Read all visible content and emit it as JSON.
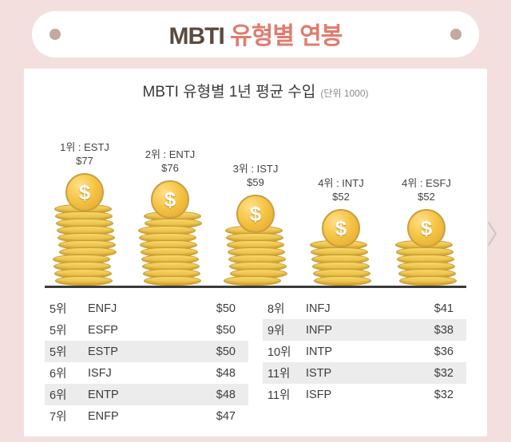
{
  "colors": {
    "page_bg": "#f3e0de",
    "panel_bg": "#ffffff",
    "header_dot": "#c4a99e",
    "title_dark": "#5b4a3f",
    "title_accent": "#e07c6f",
    "axis": "#3a3a3a",
    "shade_row": "#ececec",
    "coin_top_gradient": [
      "#ffe08a",
      "#f5c545",
      "#e2a52e"
    ],
    "coin_border": "#caa040",
    "arrow": "#c9c9c9"
  },
  "header": {
    "title_part1": "MBTI ",
    "title_part2": "유형별 연봉"
  },
  "subtitle": {
    "main": "MBTI 유형별 1년 평균 수입",
    "unit": "(단위 1000)"
  },
  "chart": {
    "type": "stacked-coin-bar",
    "coin_stack_layers_scale": "value-proportional",
    "max_value": 77,
    "bars": [
      {
        "rank": "1위 : ESTJ",
        "value_label": "$77",
        "value": 77,
        "coins": 11
      },
      {
        "rank": "2위 : ENTJ",
        "value_label": "$76",
        "value": 76,
        "coins": 10
      },
      {
        "rank": "3위 : ISTJ",
        "value_label": "$59",
        "value": 59,
        "coins": 8
      },
      {
        "rank": "4위 : INTJ",
        "value_label": "$52",
        "value": 52,
        "coins": 6
      },
      {
        "rank": "4위 : ESFJ",
        "value_label": "$52",
        "value": 52,
        "coins": 6
      }
    ]
  },
  "table": {
    "left": [
      {
        "rank": "5위",
        "type": "ENFJ",
        "value": "$50",
        "shade": false
      },
      {
        "rank": "5위",
        "type": "ESFP",
        "value": "$50",
        "shade": false
      },
      {
        "rank": "5위",
        "type": "ESTP",
        "value": "$50",
        "shade": true
      },
      {
        "rank": "6위",
        "type": "ISFJ",
        "value": "$48",
        "shade": false
      },
      {
        "rank": "6위",
        "type": "ENTP",
        "value": "$48",
        "shade": true
      },
      {
        "rank": "7위",
        "type": "ENFP",
        "value": "$47",
        "shade": false
      }
    ],
    "right": [
      {
        "rank": "8위",
        "type": "INFJ",
        "value": "$41",
        "shade": false
      },
      {
        "rank": "9위",
        "type": "INFP",
        "value": "$38",
        "shade": true
      },
      {
        "rank": "10위",
        "type": "INTP",
        "value": "$36",
        "shade": false
      },
      {
        "rank": "11위",
        "type": "ISTP",
        "value": "$32",
        "shade": true
      },
      {
        "rank": "11위",
        "type": "ISFP",
        "value": "$32",
        "shade": false
      }
    ]
  },
  "carousel": {
    "next_glyph": "〉"
  }
}
